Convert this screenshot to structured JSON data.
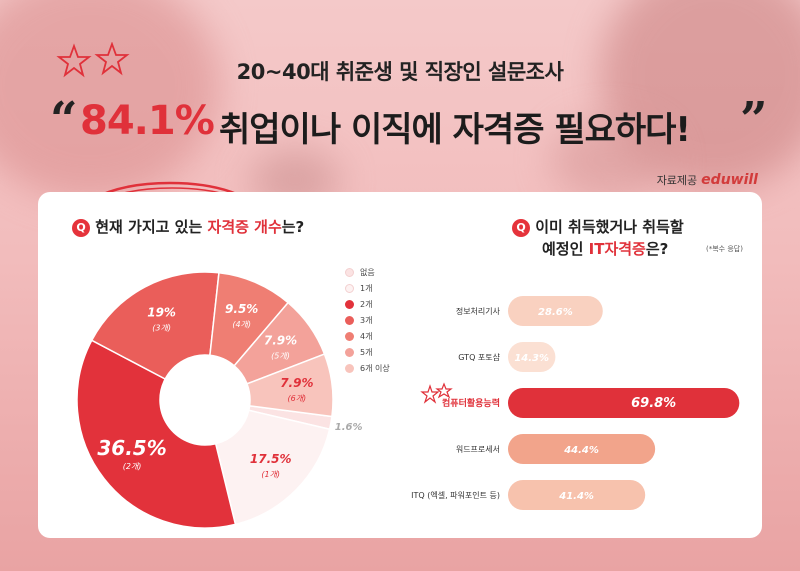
{
  "header": {
    "subtitle": "20~40대 취준생 및 직장인 설문조사",
    "open_quote": "“",
    "highlight": "84.1%",
    "headline_rest": "취업이나 이직에 자격증 필요하다!",
    "close_quote": "”"
  },
  "credit": {
    "label": "자료제공",
    "brand": "eduwill"
  },
  "left_question": {
    "badge": "Q",
    "text_a": "현재 가지고 있는 ",
    "highlight": "자격증 개수",
    "text_b": "는?"
  },
  "right_question": {
    "badge": "Q",
    "line1": "이미 취득했거나 취득할",
    "line2_a": "예정인 ",
    "highlight": "IT자격증",
    "line2_b": "은?",
    "note": "(*복수 응답)"
  },
  "colors": {
    "accent": "#e0313a",
    "bar_highlight": "#e0313a",
    "bar_mid": "#f2a48b",
    "bar_light": "#f9d1c0"
  },
  "chart_data": [
    {
      "type": "pie",
      "title": "",
      "legend_position": "right",
      "slices": [
        {
          "name": "없음",
          "value": 1.6,
          "label": "1.6%",
          "count_label": "",
          "color": "#fbe3e3"
        },
        {
          "name": "1개",
          "value": 17.5,
          "label": "17.5%",
          "count_label": "(1개)",
          "color": "#fdf2f2"
        },
        {
          "name": "2개",
          "value": 36.5,
          "label": "36.5%",
          "count_label": "(2개)",
          "color": "#e2323b"
        },
        {
          "name": "3개",
          "value": 19,
          "label": "19%",
          "count_label": "(3개)",
          "color": "#ea5e5a"
        },
        {
          "name": "4개",
          "value": 9.5,
          "label": "9.5%",
          "count_label": "(4개)",
          "color": "#ef7e73"
        },
        {
          "name": "5개",
          "value": 7.9,
          "label": "7.9%",
          "count_label": "(5개)",
          "color": "#f3a29a"
        },
        {
          "name": "6개 이상",
          "value": 7.9,
          "label": "7.9%",
          "count_label": "(6개)",
          "color": "#f8c4bc"
        }
      ]
    },
    {
      "type": "bar",
      "orientation": "horizontal",
      "categories": [
        "정보처리기사",
        "GTQ 포토샵",
        "컴퓨터활용능력",
        "워드프로세서",
        "ITQ (엑셀, 파워포인트 등)"
      ],
      "values": [
        28.6,
        14.3,
        69.8,
        44.4,
        41.4
      ],
      "labels": [
        "28.6%",
        "14.3%",
        "69.8%",
        "44.4%",
        "41.4%"
      ],
      "colors": [
        "#f9d1c0",
        "#fbe0d3",
        "#e0313a",
        "#f2a48b",
        "#f7c2ad"
      ],
      "highlight_index": 2,
      "xlim": [
        0,
        70
      ]
    }
  ]
}
